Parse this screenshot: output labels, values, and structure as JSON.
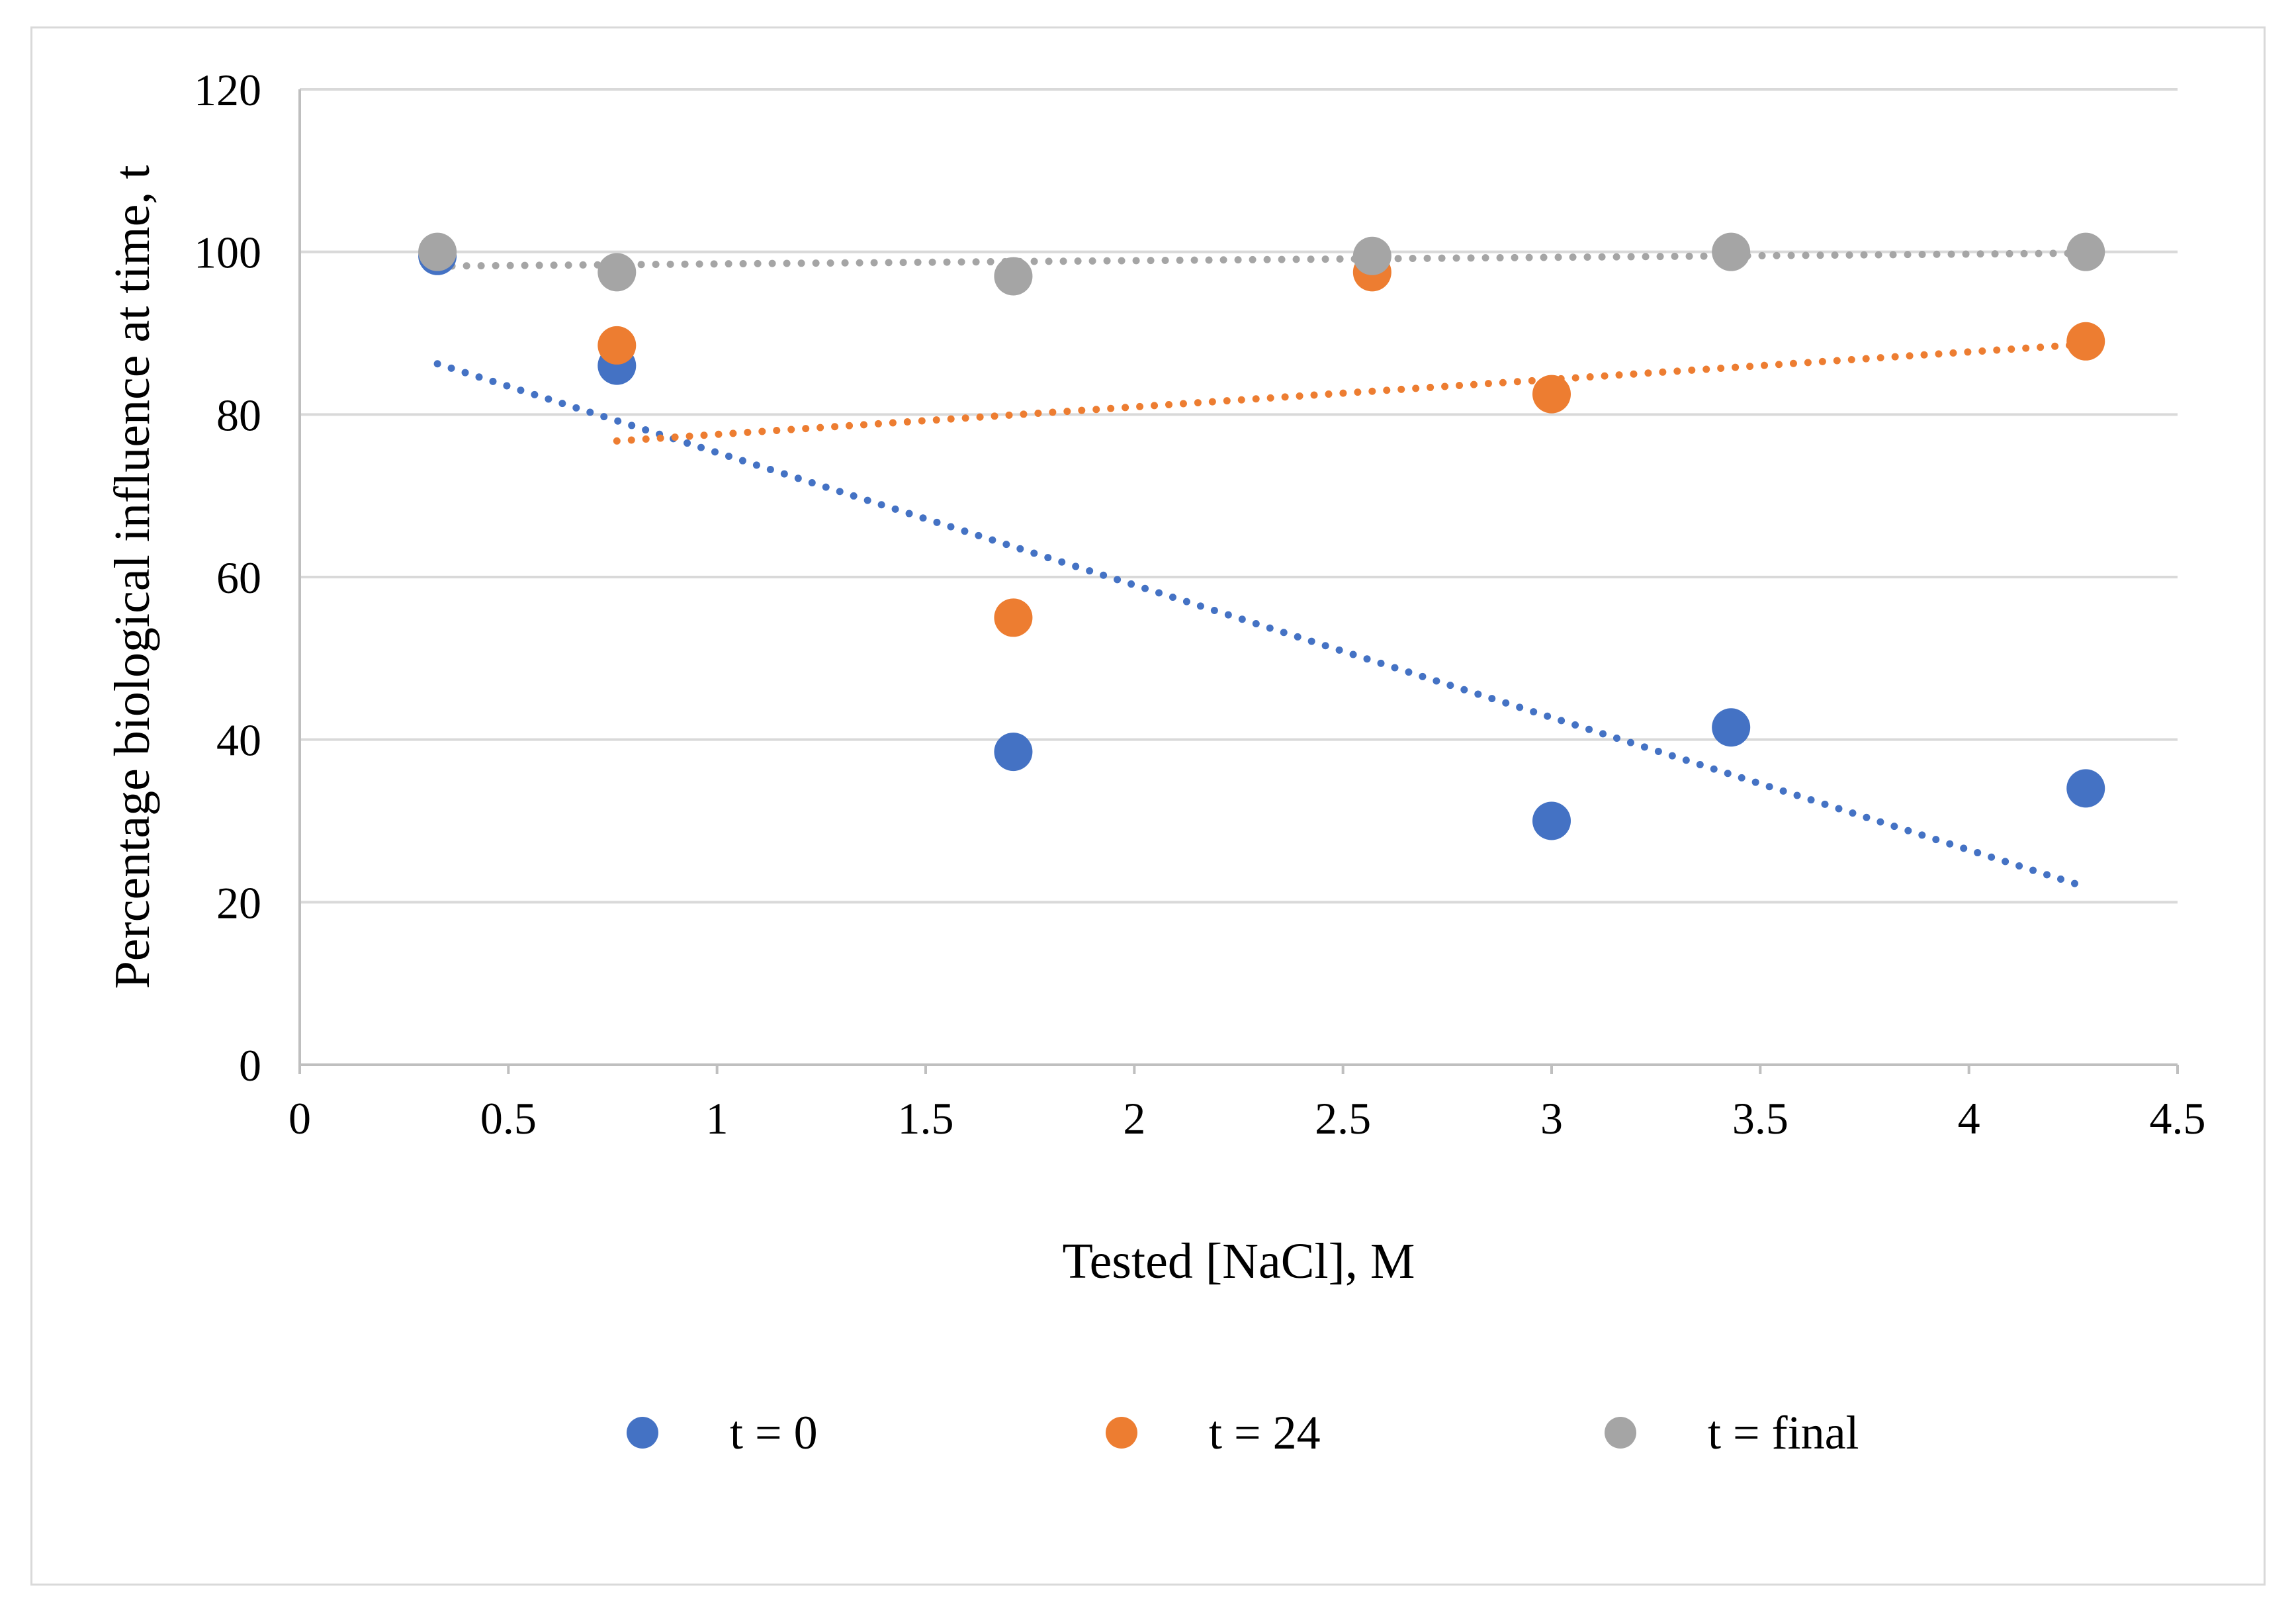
{
  "chart_data": {
    "type": "scatter",
    "title": "",
    "xlabel": "Tested [NaCl], M",
    "ylabel": "Percentage biological influence at time, t",
    "xlim": [
      0,
      4.5
    ],
    "ylim": [
      0,
      120
    ],
    "x_ticks": [
      "0",
      "0.5",
      "1",
      "1.5",
      "2",
      "2.5",
      "3",
      "3.5",
      "4",
      "4.5"
    ],
    "y_ticks": [
      "0",
      "20",
      "40",
      "60",
      "80",
      "100",
      "120"
    ],
    "grid": "horizontal",
    "legend_position": "bottom",
    "trendlines": "linear, dotted",
    "series": [
      {
        "name": "t = 0",
        "color": "#4472c4",
        "x": [
          0.33,
          0.76,
          1.71,
          3.0,
          3.43,
          4.28
        ],
        "y": [
          99.5,
          86.0,
          38.5,
          30.0,
          41.5,
          34.0
        ]
      },
      {
        "name": "t = 24",
        "color": "#ed7d31",
        "x": [
          0.76,
          1.71,
          2.57,
          3.0,
          4.28
        ],
        "y": [
          88.5,
          55.0,
          97.5,
          82.5,
          89.0
        ]
      },
      {
        "name": "t = final",
        "color": "#a5a5a5",
        "x": [
          0.33,
          0.76,
          1.71,
          2.57,
          3.43,
          4.28
        ],
        "y": [
          100.0,
          97.5,
          97.0,
          99.5,
          100.0,
          100.0
        ]
      }
    ]
  }
}
